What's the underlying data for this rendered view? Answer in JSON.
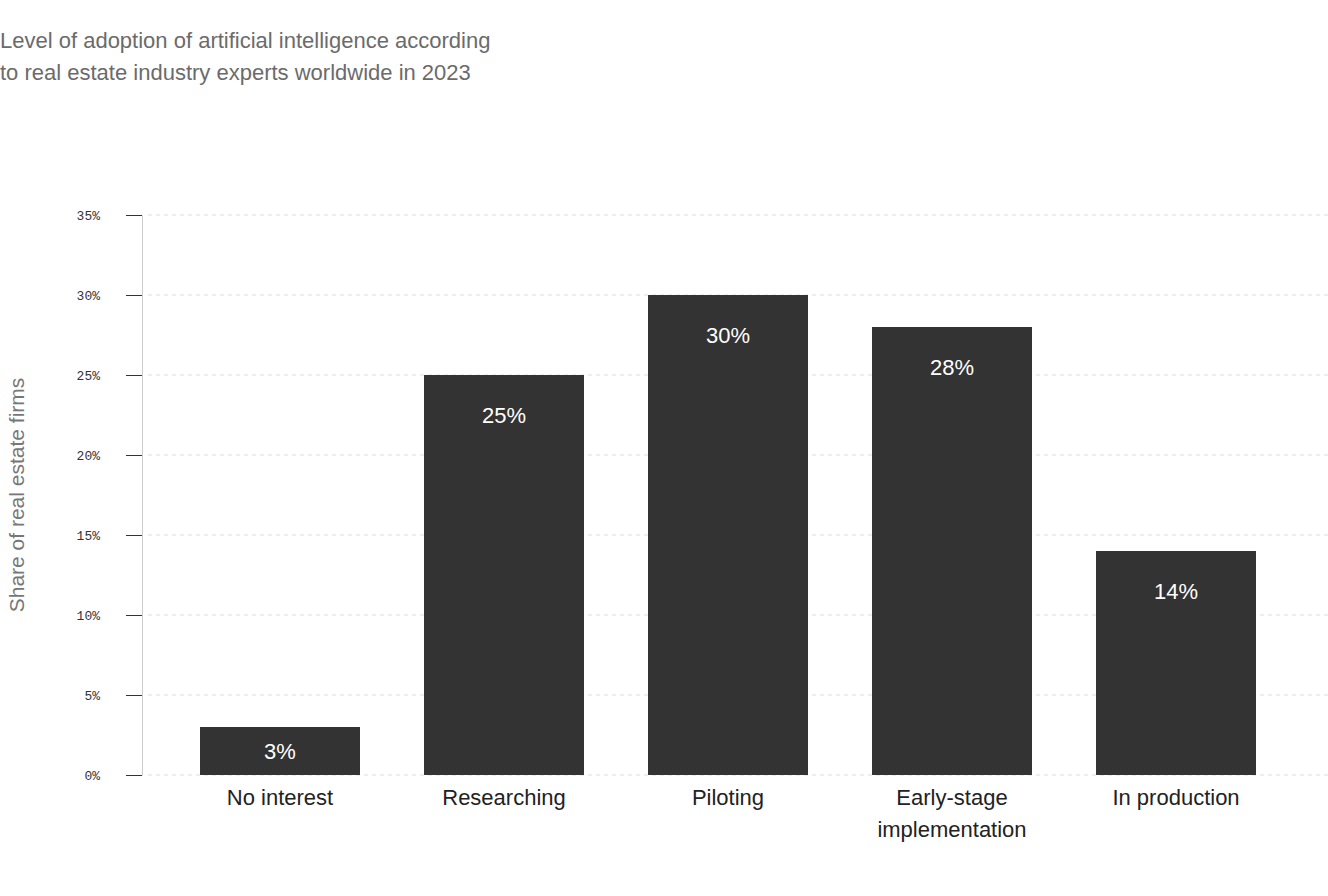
{
  "chart_data": {
    "type": "bar",
    "title": "Level of adoption of artificial intelligence according\nto real estate industry experts worldwide in 2023",
    "y_label": "Share of real estate firms",
    "categories": [
      "No interest",
      "Researching",
      "Piloting",
      "Early-stage implementation",
      "In production"
    ],
    "values": [
      3,
      25,
      30,
      28,
      14
    ],
    "value_labels": [
      "3%",
      "25%",
      "30%",
      "28%",
      "14%"
    ],
    "color": "#333333",
    "ylim": [
      0,
      35
    ],
    "yticks": [
      {
        "value": 0,
        "label": "0%"
      },
      {
        "value": 5,
        "label": "5%"
      },
      {
        "value": 10,
        "label": "10%"
      },
      {
        "value": 15,
        "label": "15%"
      },
      {
        "value": 20,
        "label": "20%"
      },
      {
        "value": 25,
        "label": "25%"
      },
      {
        "value": 30,
        "label": "30%"
      },
      {
        "value": 35,
        "label": "35%"
      }
    ],
    "grid": true,
    "data_labels": true
  }
}
